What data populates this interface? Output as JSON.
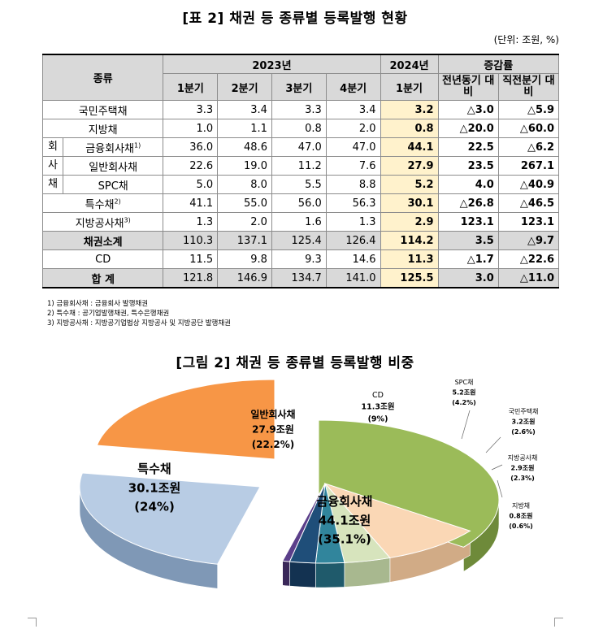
{
  "table_title": "[표 2] 채권 등 종류별 등록발행 현황",
  "unit": "(단위: 조원, %)",
  "header": {
    "kind": "종류",
    "year_2023": "2023년",
    "year_2024": "2024년",
    "change": "증감률",
    "q1": "1분기",
    "q2": "2분기",
    "q3": "3분기",
    "q4": "4분기",
    "q1_2024": "1분기",
    "yoy": "전년동기 대비",
    "qoq": "직전분기 대비"
  },
  "corp_group_chars": [
    "회",
    "사",
    "채"
  ],
  "rows": [
    {
      "name": "국민주택채",
      "sup": "",
      "q1": "3.3",
      "q2": "3.4",
      "q3": "3.3",
      "q4": "3.4",
      "y24": "3.2",
      "yoy": "△3.0",
      "qoq": "△5.9"
    },
    {
      "name": "지방채",
      "sup": "",
      "q1": "1.0",
      "q2": "1.1",
      "q3": "0.8",
      "q4": "2.0",
      "y24": "0.8",
      "yoy": "△20.0",
      "qoq": "△60.0"
    },
    {
      "name": "금융회사채",
      "sup": "1)",
      "q1": "36.0",
      "q2": "48.6",
      "q3": "47.0",
      "q4": "47.0",
      "y24": "44.1",
      "yoy": "22.5",
      "qoq": "△6.2"
    },
    {
      "name": "일반회사채",
      "sup": "",
      "q1": "22.6",
      "q2": "19.0",
      "q3": "11.2",
      "q4": "7.6",
      "y24": "27.9",
      "yoy": "23.5",
      "qoq": "267.1"
    },
    {
      "name": "SPC채",
      "sup": "",
      "q1": "5.0",
      "q2": "8.0",
      "q3": "5.5",
      "q4": "8.8",
      "y24": "5.2",
      "yoy": "4.0",
      "qoq": "△40.9"
    },
    {
      "name": "특수채",
      "sup": "2)",
      "q1": "41.1",
      "q2": "55.0",
      "q3": "56.0",
      "q4": "56.3",
      "y24": "30.1",
      "yoy": "△26.8",
      "qoq": "△46.5"
    },
    {
      "name": "지방공사채",
      "sup": "3)",
      "q1": "1.3",
      "q2": "2.0",
      "q3": "1.6",
      "q4": "1.3",
      "y24": "2.9",
      "yoy": "123.1",
      "qoq": "123.1"
    },
    {
      "name": "채권소계",
      "sup": "",
      "q1": "110.3",
      "q2": "137.1",
      "q3": "125.4",
      "q4": "126.4",
      "y24": "114.2",
      "yoy": "3.5",
      "qoq": "△9.7"
    },
    {
      "name": "CD",
      "sup": "",
      "q1": "11.5",
      "q2": "9.8",
      "q3": "9.3",
      "q4": "14.6",
      "y24": "11.3",
      "yoy": "△1.7",
      "qoq": "△22.6"
    },
    {
      "name": "합 계",
      "sup": "",
      "q1": "121.8",
      "q2": "146.9",
      "q3": "134.7",
      "q4": "141.0",
      "y24": "125.5",
      "yoy": "3.0",
      "qoq": "△11.0"
    }
  ],
  "notes": [
    "1) 금융회사채 : 금융회사 발행채권",
    "2) 특수채 : 공기업발행채권, 특수은행채권",
    "3) 지방공사채 : 지방공기업법상 지방공사 및 지방공단 발행채권"
  ],
  "figure_title": "[그림 2] 채권 등 종류별 등록발행 비중",
  "chart_data": {
    "type": "pie",
    "unit": "조원",
    "slices": [
      {
        "label": "금융회사채",
        "value": 44.1,
        "value_text": "44.1조원",
        "pct_text": "(35.1%)",
        "color": "#9bbb59",
        "dark": "#6e8a3a"
      },
      {
        "label": "CD",
        "value": 11.3,
        "value_text": "11.3조원",
        "pct_text": "(9%)",
        "color": "#fad7b5",
        "dark": "#d1ab86"
      },
      {
        "label": "SPC채",
        "value": 5.2,
        "value_text": "5.2조원",
        "pct_text": "(4.2%)",
        "color": "#d7e4bd",
        "dark": "#a8b88f"
      },
      {
        "label": "국민주택채",
        "value": 3.2,
        "value_text": "3.2조원",
        "pct_text": "(2.6%)",
        "color": "#31859c",
        "dark": "#1f5a6b"
      },
      {
        "label": "지방공사채",
        "value": 2.9,
        "value_text": "2.9조원",
        "pct_text": "(2.3%)",
        "color": "#1f4e79",
        "dark": "#133251"
      },
      {
        "label": "지방채",
        "value": 0.8,
        "value_text": "0.8조원",
        "pct_text": "(0.6%)",
        "color": "#5b3f8a",
        "dark": "#3a2859"
      },
      {
        "label": "특수채",
        "value": 30.1,
        "value_text": "30.1조원",
        "pct_text": "(24%)",
        "color": "#b8cce4",
        "dark": "#7f98b6"
      },
      {
        "label": "일반회사채",
        "value": 27.9,
        "value_text": "27.9조원",
        "pct_text": "(22.2%)",
        "color": "#f79646",
        "dark": "#c0702c"
      }
    ]
  }
}
